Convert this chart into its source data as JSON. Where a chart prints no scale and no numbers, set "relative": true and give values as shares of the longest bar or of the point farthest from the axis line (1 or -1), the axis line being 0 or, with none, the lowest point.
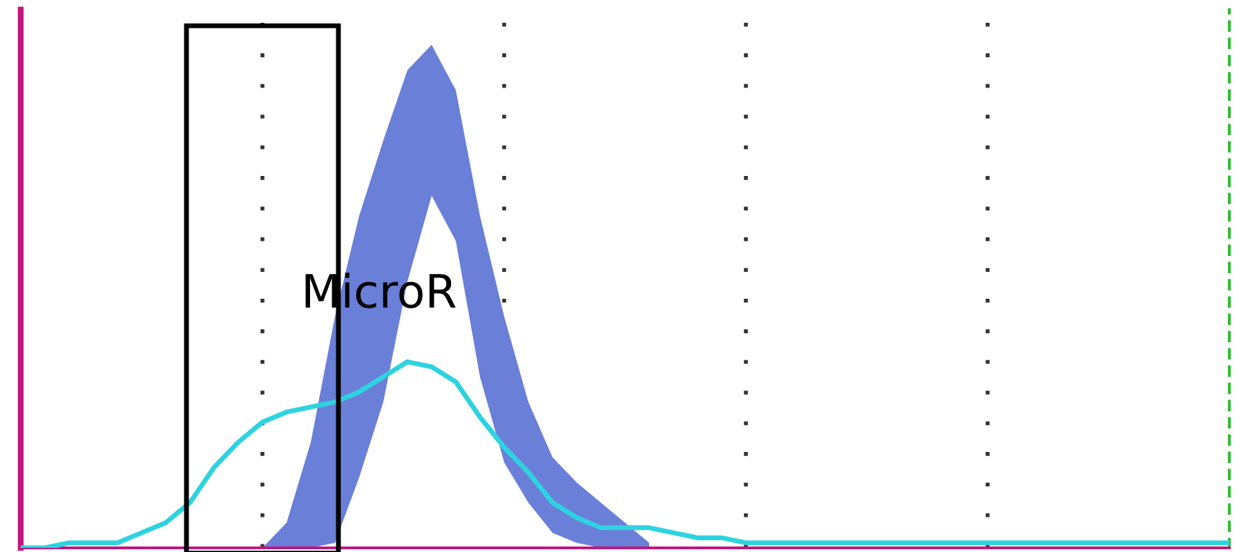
{
  "chart_data": {
    "type": "line",
    "relative": true,
    "grid": "x",
    "annotations": [
      "MicroR"
    ],
    "categories": [
      null,
      null,
      null,
      null,
      null,
      null,
      null,
      null,
      null,
      null,
      null,
      null,
      null,
      null,
      null,
      null,
      null,
      null,
      null,
      null,
      null,
      null,
      null,
      null,
      null,
      null,
      null,
      null,
      null,
      null,
      null,
      null,
      null,
      null,
      null,
      null,
      null,
      null,
      null,
      null,
      null,
      null,
      null,
      null,
      null,
      null,
      null,
      null,
      null,
      null,
      null
    ],
    "series": [
      {
        "type": "area",
        "color": "#6a7fd8",
        "values": [
          null,
          null,
          null,
          null,
          null,
          null,
          null,
          null,
          null,
          null,
          0,
          0.05,
          0.21,
          0.46,
          0.66,
          0.81,
          0.95,
          1.0,
          0.91,
          0.66,
          0.46,
          0.29,
          0.18,
          0.13,
          0.09,
          0.05,
          0.01,
          null,
          null,
          null,
          null,
          null,
          null,
          null,
          null,
          null,
          null,
          null,
          null,
          null,
          null,
          null,
          null,
          null,
          null,
          null,
          null,
          null,
          null,
          null,
          null
        ]
      },
      {
        "type": "area",
        "color": "#ffffff",
        "values": [
          null,
          null,
          null,
          null,
          null,
          null,
          null,
          null,
          null,
          null,
          0,
          0,
          0,
          0.01,
          0.14,
          0.29,
          0.53,
          0.7,
          0.61,
          0.34,
          0.17,
          0.09,
          0.03,
          0.01,
          0,
          0,
          0,
          null,
          null,
          null,
          null,
          null,
          null,
          null,
          null,
          null,
          null,
          null,
          null,
          null,
          null,
          null,
          null,
          null,
          null,
          null,
          null,
          null,
          null,
          null,
          null
        ]
      },
      {
        "color": "#2ed3e0",
        "values": [
          0,
          0,
          0.01,
          0.01,
          0.01,
          0.03,
          0.05,
          0.09,
          0.16,
          0.21,
          0.25,
          0.27,
          0.28,
          0.29,
          0.31,
          0.34,
          0.37,
          0.36,
          0.33,
          0.26,
          0.2,
          0.15,
          0.09,
          0.06,
          0.04,
          0.04,
          0.04,
          0.03,
          0.02,
          0.02,
          0.01,
          0.01,
          0.01,
          0.01,
          0.01,
          0.01,
          0.01,
          0.01,
          0.01,
          0.01,
          0.01,
          0.01,
          0.01,
          0.01,
          0.01,
          0.01,
          0.01,
          0.01,
          0.01,
          0.01,
          0.01
        ]
      }
    ]
  }
}
